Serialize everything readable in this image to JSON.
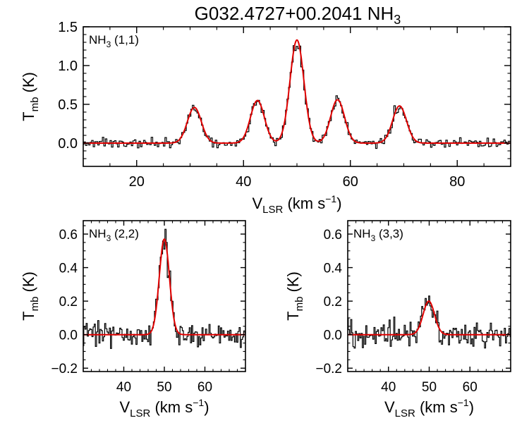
{
  "title": {
    "main": "G032.4727+00.2041 NH",
    "sub": "3"
  },
  "colors": {
    "data": "#000000",
    "fit": "#e00000",
    "axis": "#000000",
    "background": "#ffffff"
  },
  "chart_data": [
    {
      "type": "line",
      "panel": "top",
      "label": {
        "prefix": "NH",
        "sub": "3",
        "suffix": " (1,1)"
      },
      "xlabel": {
        "main": "V",
        "sub": "LSR",
        "units": " (km s",
        "exp": "−1",
        "close": ")"
      },
      "ylabel": {
        "main": "T",
        "sub": "mb",
        "units": " (K)"
      },
      "xlim": [
        10,
        90
      ],
      "ylim": [
        -0.3,
        1.5
      ],
      "xticks": [
        20,
        40,
        60,
        80
      ],
      "xtick_labels": [
        "20",
        "40",
        "60",
        "80"
      ],
      "yticks": [
        0.0,
        0.5,
        1.0,
        1.5
      ],
      "ytick_labels": [
        "0.0",
        "0.5",
        "1.0",
        "1.5"
      ],
      "noise_rms": 0.03,
      "fit_components": [
        {
          "center": 30.8,
          "amplitude": 0.46,
          "sigma": 1.3
        },
        {
          "center": 42.6,
          "amplitude": 0.55,
          "sigma": 1.3
        },
        {
          "center": 50.0,
          "amplitude": 1.33,
          "sigma": 1.3
        },
        {
          "center": 57.6,
          "amplitude": 0.56,
          "sigma": 1.3
        },
        {
          "center": 69.2,
          "amplitude": 0.48,
          "sigma": 1.3
        }
      ]
    },
    {
      "type": "line",
      "panel": "bottom-left",
      "label": {
        "prefix": "NH",
        "sub": "3",
        "suffix": " (2,2)"
      },
      "xlabel": {
        "main": "V",
        "sub": "LSR",
        "units": " (km s",
        "exp": "−1",
        "close": ")"
      },
      "ylabel": {
        "main": "T",
        "sub": "mb",
        "units": " (K)"
      },
      "xlim": [
        30,
        70
      ],
      "ylim": [
        -0.22,
        0.68
      ],
      "xticks": [
        40,
        50,
        60
      ],
      "xtick_labels": [
        "40",
        "50",
        "60"
      ],
      "yticks": [
        -0.2,
        0.0,
        0.2,
        0.4,
        0.6
      ],
      "ytick_labels": [
        "−0.2",
        "0.0",
        "0.2",
        "0.4",
        "0.6"
      ],
      "noise_rms": 0.035,
      "fit_components": [
        {
          "center": 50.0,
          "amplitude": 0.57,
          "sigma": 1.25
        }
      ]
    },
    {
      "type": "line",
      "panel": "bottom-right",
      "label": {
        "prefix": "NH",
        "sub": "3",
        "suffix": " (3,3)"
      },
      "xlabel": {
        "main": "V",
        "sub": "LSR",
        "units": " (km s",
        "exp": "−1",
        "close": ")"
      },
      "ylabel": {
        "main": "T",
        "sub": "mb",
        "units": " (K)"
      },
      "xlim": [
        30,
        70
      ],
      "ylim": [
        -0.22,
        0.68
      ],
      "xticks": [
        40,
        50,
        60
      ],
      "xtick_labels": [
        "40",
        "50",
        "60"
      ],
      "yticks": [
        -0.2,
        0.0,
        0.2,
        0.4,
        0.6
      ],
      "ytick_labels": [
        "−0.2",
        "0.0",
        "0.2",
        "0.4",
        "0.6"
      ],
      "noise_rms": 0.04,
      "fit_components": [
        {
          "center": 49.9,
          "amplitude": 0.2,
          "sigma": 1.4
        }
      ]
    }
  ]
}
